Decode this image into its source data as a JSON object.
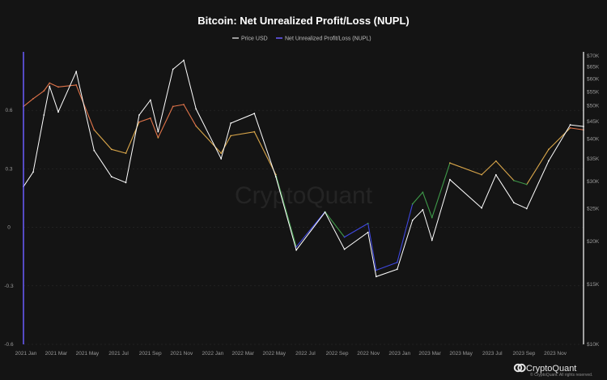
{
  "colors": {
    "background": "#141414",
    "price_line": "#ffffff",
    "nupl_axis": "#6a5cff",
    "nupl_high": "#e0744a",
    "nupl_mid": "#d9a64a",
    "nupl_low": "#3f9a4a",
    "nupl_neg": "#3f48e0",
    "grid": "#2a2a2a"
  },
  "watermark": "CryptoQuant",
  "brand": {
    "name": "CryptoQuant",
    "icon": "cryptoquant-logo-icon",
    "rights": "© CryptoQuant. All rights reserved."
  },
  "chart_data": {
    "type": "line",
    "title": "Bitcoin: Net Unrealized Profit/Loss (NUPL)",
    "legend": [
      {
        "name": "Price USD",
        "color": "#c8c8c8"
      },
      {
        "name": "Net Unrealized Profit/Loss (NUPL)",
        "color": "#6a5cff"
      }
    ],
    "legend_position": "top-center",
    "grid": true,
    "x_ticks": [
      "2021 Jan",
      "2021 Mar",
      "2021 May",
      "2021 Jul",
      "2021 Sep",
      "2021 Nov",
      "2022 Jan",
      "2022 Mar",
      "2022 May",
      "2022 Jul",
      "2022 Sep",
      "2022 Nov",
      "2023 Jan",
      "2023 Mar",
      "2023 May",
      "2023 Jul",
      "2023 Sep",
      "2023 Nov"
    ],
    "x_range": [
      "2021-01-01",
      "2023-12-31"
    ],
    "left_axis": {
      "ticks": [
        "0.6",
        "0.3",
        "0",
        "-0.3",
        "-0.6"
      ],
      "ylim": [
        -0.6,
        0.9
      ]
    },
    "right_axis": {
      "scale": "log",
      "ticks": [
        "$70K",
        "$65K",
        "$60K",
        "$55K",
        "$50K",
        "$45K",
        "$40K",
        "$35K",
        "$30K",
        "$25K",
        "$20K",
        "$15K",
        "$10K"
      ],
      "ylim": [
        10000,
        72000
      ]
    },
    "series": [
      {
        "name": "Price USD",
        "x": [
          "2021-01-01",
          "2021-01-20",
          "2021-02-10",
          "2021-02-21",
          "2021-03-10",
          "2021-04-14",
          "2021-05-19",
          "2021-06-22",
          "2021-07-20",
          "2021-08-15",
          "2021-09-06",
          "2021-09-21",
          "2021-10-20",
          "2021-11-10",
          "2021-12-04",
          "2022-01-22",
          "2022-02-10",
          "2022-03-28",
          "2022-05-09",
          "2022-06-18",
          "2022-08-13",
          "2022-09-20",
          "2022-11-05",
          "2022-11-21",
          "2023-01-01",
          "2023-01-31",
          "2023-02-20",
          "2023-03-10",
          "2023-04-14",
          "2023-06-15",
          "2023-07-13",
          "2023-08-17",
          "2023-09-11",
          "2023-10-24",
          "2023-12-05",
          "2023-12-31"
        ],
        "values": [
          29000,
          32000,
          47000,
          57000,
          48000,
          63000,
          37000,
          31000,
          29800,
          47000,
          52000,
          42000,
          64000,
          68000,
          49000,
          35000,
          44500,
          47500,
          31000,
          18900,
          24400,
          19000,
          21300,
          15800,
          16600,
          23100,
          24800,
          20200,
          30400,
          25100,
          31400,
          26000,
          25000,
          34500,
          44000,
          43500
        ]
      },
      {
        "name": "Net Unrealized Profit/Loss (NUPL)",
        "x": [
          "2021-01-01",
          "2021-01-20",
          "2021-02-10",
          "2021-02-21",
          "2021-03-10",
          "2021-04-14",
          "2021-05-19",
          "2021-06-22",
          "2021-07-20",
          "2021-08-15",
          "2021-09-06",
          "2021-09-21",
          "2021-10-20",
          "2021-11-10",
          "2021-12-04",
          "2022-01-22",
          "2022-02-10",
          "2022-03-28",
          "2022-05-09",
          "2022-06-18",
          "2022-08-13",
          "2022-09-20",
          "2022-11-05",
          "2022-11-21",
          "2023-01-01",
          "2023-01-31",
          "2023-02-20",
          "2023-03-10",
          "2023-04-14",
          "2023-06-15",
          "2023-07-13",
          "2023-08-17",
          "2023-09-11",
          "2023-10-24",
          "2023-12-05",
          "2023-12-31"
        ],
        "values": [
          0.62,
          0.66,
          0.7,
          0.74,
          0.72,
          0.73,
          0.5,
          0.4,
          0.38,
          0.54,
          0.56,
          0.46,
          0.62,
          0.63,
          0.52,
          0.38,
          0.47,
          0.49,
          0.27,
          -0.1,
          0.08,
          -0.05,
          0.02,
          -0.22,
          -0.18,
          0.12,
          0.18,
          0.05,
          0.33,
          0.27,
          0.34,
          0.24,
          0.22,
          0.4,
          0.51,
          0.5
        ]
      }
    ]
  }
}
